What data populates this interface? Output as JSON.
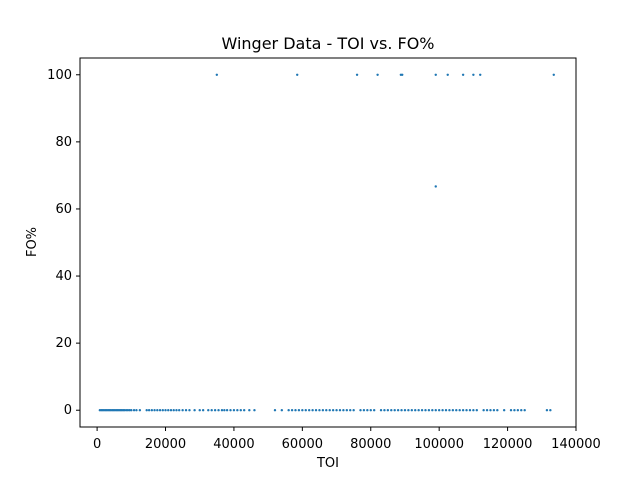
{
  "chart_data": {
    "type": "scatter",
    "title": "Winger Data - TOI vs. FO%",
    "xlabel": "TOI",
    "ylabel": "FO%",
    "xlim": [
      -5000,
      140000
    ],
    "ylim": [
      -5,
      105
    ],
    "xticks": [
      0,
      20000,
      40000,
      60000,
      80000,
      100000,
      120000,
      140000
    ],
    "yticks": [
      0,
      20,
      40,
      60,
      80,
      100
    ],
    "grid": false,
    "legend": "none",
    "point_color": "#1f77b4",
    "series": [
      {
        "points": [
          [
            35000,
            100
          ],
          [
            58500,
            100
          ],
          [
            76000,
            100
          ],
          [
            82000,
            100
          ],
          [
            88800,
            100
          ],
          [
            89200,
            100
          ],
          [
            99000,
            100
          ],
          [
            102500,
            100
          ],
          [
            107000,
            100
          ],
          [
            110000,
            100
          ],
          [
            112000,
            100
          ],
          [
            133500,
            100
          ],
          [
            99000,
            66.7
          ],
          [
            800,
            0
          ],
          [
            1200,
            0
          ],
          [
            1600,
            0
          ],
          [
            2000,
            0
          ],
          [
            2400,
            0
          ],
          [
            2800,
            0
          ],
          [
            3200,
            0
          ],
          [
            3600,
            0
          ],
          [
            4000,
            0
          ],
          [
            4400,
            0
          ],
          [
            4800,
            0
          ],
          [
            5200,
            0
          ],
          [
            5600,
            0
          ],
          [
            6000,
            0
          ],
          [
            6400,
            0
          ],
          [
            6800,
            0
          ],
          [
            7200,
            0
          ],
          [
            7600,
            0
          ],
          [
            8000,
            0
          ],
          [
            8500,
            0
          ],
          [
            9000,
            0
          ],
          [
            9500,
            0
          ],
          [
            10000,
            0
          ],
          [
            10800,
            0
          ],
          [
            11500,
            0
          ],
          [
            12500,
            0
          ],
          [
            14500,
            0
          ],
          [
            15200,
            0
          ],
          [
            16000,
            0
          ],
          [
            16800,
            0
          ],
          [
            17600,
            0
          ],
          [
            18400,
            0
          ],
          [
            19200,
            0
          ],
          [
            20000,
            0
          ],
          [
            20800,
            0
          ],
          [
            21600,
            0
          ],
          [
            22400,
            0
          ],
          [
            23200,
            0
          ],
          [
            24000,
            0
          ],
          [
            25000,
            0
          ],
          [
            26000,
            0
          ],
          [
            27000,
            0
          ],
          [
            28500,
            0
          ],
          [
            30000,
            0
          ],
          [
            31000,
            0
          ],
          [
            32500,
            0
          ],
          [
            33500,
            0
          ],
          [
            34500,
            0
          ],
          [
            35500,
            0
          ],
          [
            36500,
            0
          ],
          [
            37200,
            0
          ],
          [
            38000,
            0
          ],
          [
            39000,
            0
          ],
          [
            40000,
            0
          ],
          [
            41000,
            0
          ],
          [
            42000,
            0
          ],
          [
            43000,
            0
          ],
          [
            44500,
            0
          ],
          [
            46000,
            0
          ],
          [
            52000,
            0
          ],
          [
            54000,
            0
          ],
          [
            56000,
            0
          ],
          [
            57000,
            0
          ],
          [
            58000,
            0
          ],
          [
            59000,
            0
          ],
          [
            60000,
            0
          ],
          [
            61000,
            0
          ],
          [
            62000,
            0
          ],
          [
            63000,
            0
          ],
          [
            64000,
            0
          ],
          [
            65000,
            0
          ],
          [
            66000,
            0
          ],
          [
            67000,
            0
          ],
          [
            68000,
            0
          ],
          [
            69000,
            0
          ],
          [
            70000,
            0
          ],
          [
            71000,
            0
          ],
          [
            72000,
            0
          ],
          [
            73000,
            0
          ],
          [
            74000,
            0
          ],
          [
            75000,
            0
          ],
          [
            77000,
            0
          ],
          [
            78000,
            0
          ],
          [
            79000,
            0
          ],
          [
            80000,
            0
          ],
          [
            81000,
            0
          ],
          [
            83000,
            0
          ],
          [
            84000,
            0
          ],
          [
            85000,
            0
          ],
          [
            86000,
            0
          ],
          [
            87000,
            0
          ],
          [
            88000,
            0
          ],
          [
            89000,
            0
          ],
          [
            90000,
            0
          ],
          [
            91000,
            0
          ],
          [
            92000,
            0
          ],
          [
            93000,
            0
          ],
          [
            94000,
            0
          ],
          [
            95000,
            0
          ],
          [
            96000,
            0
          ],
          [
            97000,
            0
          ],
          [
            98000,
            0
          ],
          [
            99000,
            0
          ],
          [
            100000,
            0
          ],
          [
            101000,
            0
          ],
          [
            102000,
            0
          ],
          [
            103000,
            0
          ],
          [
            104000,
            0
          ],
          [
            105000,
            0
          ],
          [
            106000,
            0
          ],
          [
            107000,
            0
          ],
          [
            108000,
            0
          ],
          [
            109000,
            0
          ],
          [
            110000,
            0
          ],
          [
            111000,
            0
          ],
          [
            113000,
            0
          ],
          [
            114000,
            0
          ],
          [
            115000,
            0
          ],
          [
            116000,
            0
          ],
          [
            117000,
            0
          ],
          [
            119000,
            0
          ],
          [
            121000,
            0
          ],
          [
            122000,
            0
          ],
          [
            123000,
            0
          ],
          [
            124000,
            0
          ],
          [
            125000,
            0
          ],
          [
            131500,
            0
          ],
          [
            132500,
            0
          ]
        ]
      }
    ]
  }
}
